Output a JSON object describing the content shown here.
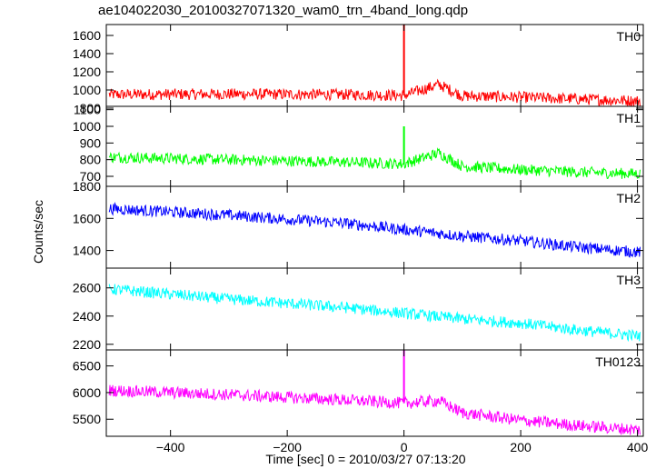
{
  "title": "ae104022030_20100327071320_wam0_trn_4band_long.qdp",
  "chart_data": {
    "type": "line",
    "xlabel": "Time [sec] 0 = 2010/03/27 07:13:20",
    "ylabel": "Counts/sec",
    "xlim": [
      -510,
      410
    ],
    "xticks": [
      -400,
      -200,
      0,
      200,
      400
    ],
    "grid": false,
    "panels": [
      {
        "name": "TH0",
        "color": "#ff0000",
        "ylim": [
          820,
          1720
        ],
        "yticks": [
          800,
          1000,
          1200,
          1400,
          1600
        ],
        "x": [
          -500,
          -300,
          -100,
          0,
          60,
          100,
          200,
          300,
          400
        ],
        "y": [
          950,
          955,
          950,
          940,
          1060,
          935,
          920,
          900,
          880
        ],
        "spike": {
          "x": 0,
          "y": 1720
        }
      },
      {
        "name": "TH1",
        "color": "#00ff00",
        "ylim": [
          640,
          1120
        ],
        "yticks": [
          700,
          800,
          900,
          1000,
          1100
        ],
        "x": [
          -500,
          -300,
          -100,
          0,
          60,
          100,
          200,
          300,
          400
        ],
        "y": [
          815,
          800,
          785,
          775,
          840,
          760,
          740,
          725,
          715
        ],
        "spike": {
          "x": 0,
          "y": 1000
        }
      },
      {
        "name": "TH2",
        "color": "#0000ff",
        "ylim": [
          1290,
          1800
        ],
        "yticks": [
          1400,
          1600,
          1800
        ],
        "x": [
          -500,
          -300,
          -100,
          0,
          100,
          200,
          300,
          400
        ],
        "y": [
          1660,
          1620,
          1570,
          1530,
          1490,
          1460,
          1420,
          1390
        ]
      },
      {
        "name": "TH3",
        "color": "#00ffff",
        "ylim": [
          2160,
          2740
        ],
        "yticks": [
          2200,
          2400,
          2600
        ],
        "x": [
          -500,
          -300,
          -100,
          0,
          100,
          200,
          300,
          400
        ],
        "y": [
          2590,
          2520,
          2460,
          2420,
          2380,
          2350,
          2300,
          2260
        ]
      },
      {
        "name": "TH0123",
        "color": "#ff00ff",
        "ylim": [
          5180,
          6800
        ],
        "yticks": [
          5500,
          6000,
          6500
        ],
        "x": [
          -500,
          -300,
          -100,
          0,
          60,
          100,
          200,
          300,
          400
        ],
        "y": [
          6040,
          5960,
          5860,
          5800,
          5850,
          5620,
          5480,
          5380,
          5300
        ],
        "spike": {
          "x": 0,
          "y": 6800
        }
      }
    ]
  }
}
